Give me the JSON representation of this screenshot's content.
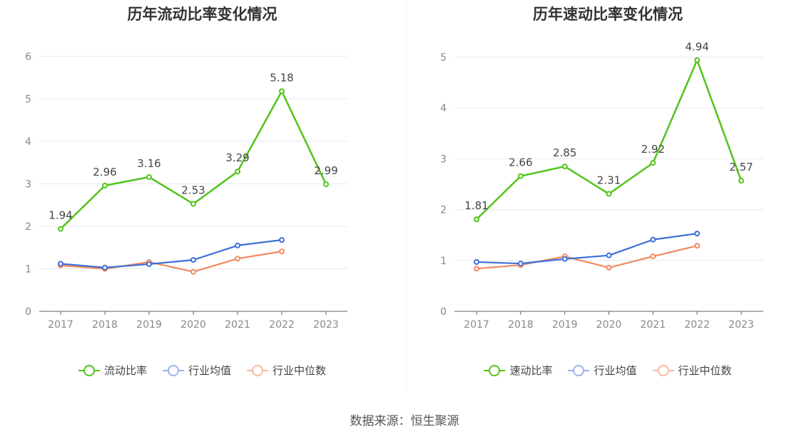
{
  "source": "数据来源：恒生聚源",
  "colors": {
    "main": "#52c41a",
    "avg": "#3b6fd8",
    "median": "#f08a5d"
  },
  "chart_data": [
    {
      "type": "line",
      "title": "历年流动比率变化情况",
      "categories": [
        "2017",
        "2018",
        "2019",
        "2020",
        "2021",
        "2022",
        "2023"
      ],
      "ylim": [
        0,
        6
      ],
      "yticks": [
        0,
        1,
        2,
        3,
        4,
        5,
        6
      ],
      "grid": true,
      "legend_position": "bottom",
      "series": [
        {
          "name": "流动比率",
          "key": "main",
          "values": [
            1.94,
            2.96,
            3.16,
            2.53,
            3.29,
            5.18,
            2.99
          ],
          "labels": [
            "1.94",
            "2.96",
            "3.16",
            "2.53",
            "3.29",
            "5.18",
            "2.99"
          ]
        },
        {
          "name": "行业均值",
          "key": "avg",
          "values": [
            1.12,
            1.03,
            1.11,
            1.21,
            1.55,
            1.68,
            null
          ]
        },
        {
          "name": "行业中位数",
          "key": "median",
          "values": [
            1.08,
            1.0,
            1.16,
            0.93,
            1.24,
            1.41,
            null
          ]
        }
      ]
    },
    {
      "type": "line",
      "title": "历年速动比率变化情况",
      "categories": [
        "2017",
        "2018",
        "2019",
        "2020",
        "2021",
        "2022",
        "2023"
      ],
      "ylim": [
        0,
        5
      ],
      "yticks": [
        0,
        1,
        2,
        3,
        4,
        5
      ],
      "grid": true,
      "legend_position": "bottom",
      "series": [
        {
          "name": "速动比率",
          "key": "main",
          "values": [
            1.81,
            2.66,
            2.85,
            2.31,
            2.92,
            4.94,
            2.57
          ],
          "labels": [
            "1.81",
            "2.66",
            "2.85",
            "2.31",
            "2.92",
            "4.94",
            "2.57"
          ]
        },
        {
          "name": "行业均值",
          "key": "avg",
          "values": [
            0.97,
            0.94,
            1.03,
            1.1,
            1.41,
            1.53,
            null
          ]
        },
        {
          "name": "行业中位数",
          "key": "median",
          "values": [
            0.84,
            0.91,
            1.08,
            0.86,
            1.08,
            1.29,
            null
          ]
        }
      ]
    }
  ]
}
